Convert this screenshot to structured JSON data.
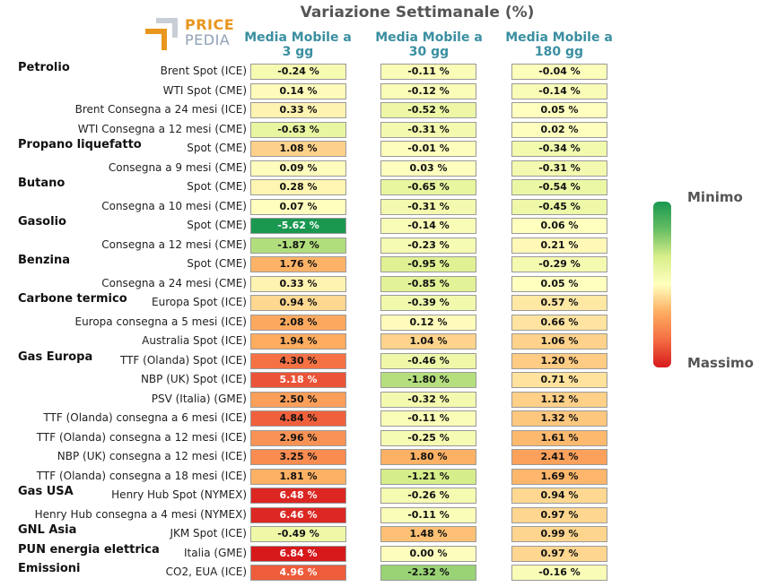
{
  "title": "Variazione Settimanale (%)",
  "logo": {
    "line1": "PRICE",
    "line2": "PEDIA"
  },
  "columns": [
    "Media Mobile a 3 gg",
    "Media Mobile a 30 gg",
    "Media Mobile a 180 gg"
  ],
  "legend": {
    "top": "Minimo",
    "bottom": "Massimo"
  },
  "colors": {
    "min": "#1a9850",
    "mid": "#ffffbf",
    "max": "#d7191c",
    "header": "#3a8fa0"
  },
  "chart_data": {
    "type": "table",
    "title": "Variazione Settimanale (%)",
    "series": [
      {
        "name": "Media Mobile a 3 gg"
      },
      {
        "name": "Media Mobile a 30 gg"
      },
      {
        "name": "Media Mobile a 180 gg"
      }
    ],
    "groups": [
      {
        "name": "Petrolio",
        "start": 0
      },
      {
        "name": "Propano liquefatto",
        "start": 4
      },
      {
        "name": "Butano",
        "start": 6
      },
      {
        "name": "Gasolio",
        "start": 8
      },
      {
        "name": "Benzina",
        "start": 10
      },
      {
        "name": "Carbone termico",
        "start": 12
      },
      {
        "name": "Gas Europa",
        "start": 15
      },
      {
        "name": "Gas USA",
        "start": 22
      },
      {
        "name": "GNL Asia",
        "start": 24
      },
      {
        "name": "PUN energia elettrica",
        "start": 25
      },
      {
        "name": "Emissioni",
        "start": 26
      }
    ],
    "rows": [
      {
        "label": "Brent Spot (ICE)",
        "values": [
          -0.24,
          -0.11,
          -0.04
        ]
      },
      {
        "label": "WTI Spot (CME)",
        "values": [
          0.14,
          -0.12,
          -0.14
        ]
      },
      {
        "label": "Brent Consegna a 24 mesi (ICE)",
        "values": [
          0.33,
          -0.52,
          0.05
        ]
      },
      {
        "label": "WTI Consegna a 12 mesi (CME)",
        "values": [
          -0.63,
          -0.31,
          0.02
        ]
      },
      {
        "label": "Spot (CME)",
        "values": [
          1.08,
          -0.01,
          -0.34
        ]
      },
      {
        "label": "Consegna a 9 mesi (CME)",
        "values": [
          0.09,
          0.03,
          -0.31
        ]
      },
      {
        "label": "Spot (CME)",
        "values": [
          0.28,
          -0.65,
          -0.54
        ]
      },
      {
        "label": "Consegna a 10 mesi (CME)",
        "values": [
          0.07,
          -0.31,
          -0.45
        ]
      },
      {
        "label": "Spot (CME)",
        "values": [
          -5.62,
          -0.14,
          0.06
        ]
      },
      {
        "label": "Consegna a 12 mesi (CME)",
        "values": [
          -1.87,
          -0.23,
          0.21
        ]
      },
      {
        "label": "Spot (CME)",
        "values": [
          1.76,
          -0.95,
          -0.29
        ]
      },
      {
        "label": "Consegna a 24 mesi (CME)",
        "values": [
          0.33,
          -0.85,
          0.05
        ]
      },
      {
        "label": "Europa Spot (ICE)",
        "values": [
          0.94,
          -0.39,
          0.57
        ]
      },
      {
        "label": "Europa consegna a 5 mesi (ICE)",
        "values": [
          2.08,
          0.12,
          0.66
        ]
      },
      {
        "label": "Australia Spot (ICE)",
        "values": [
          1.94,
          1.04,
          1.06
        ]
      },
      {
        "label": "TTF (Olanda) Spot (ICE)",
        "values": [
          4.3,
          -0.46,
          1.2
        ]
      },
      {
        "label": "NBP (UK) Spot (ICE)",
        "values": [
          5.18,
          -1.8,
          0.71
        ]
      },
      {
        "label": "PSV (Italia) (GME)",
        "values": [
          2.5,
          -0.32,
          1.12
        ]
      },
      {
        "label": "TTF (Olanda) consegna a 6 mesi (ICE)",
        "values": [
          4.84,
          -0.11,
          1.32
        ]
      },
      {
        "label": "TTF (Olanda) consegna a 12 mesi (ICE)",
        "values": [
          2.96,
          -0.25,
          1.61
        ]
      },
      {
        "label": "NBP (UK) consegna a 12 mesi (ICE)",
        "values": [
          3.25,
          1.8,
          2.41
        ]
      },
      {
        "label": "TTF (Olanda) consegna a 18 mesi (ICE)",
        "values": [
          1.81,
          -1.21,
          1.69
        ]
      },
      {
        "label": "Henry Hub Spot (NYMEX)",
        "values": [
          6.48,
          -0.26,
          0.94
        ]
      },
      {
        "label": "Henry Hub consegna a 4 mesi (NYMEX)",
        "values": [
          6.46,
          -0.11,
          0.97
        ]
      },
      {
        "label": "JKM Spot (ICE)",
        "values": [
          -0.49,
          1.48,
          0.99
        ]
      },
      {
        "label": "Italia (GME)",
        "values": [
          6.84,
          0.0,
          0.97
        ]
      },
      {
        "label": "CO2, EUA (ICE)",
        "values": [
          4.96,
          -2.32,
          -0.16
        ]
      }
    ]
  }
}
